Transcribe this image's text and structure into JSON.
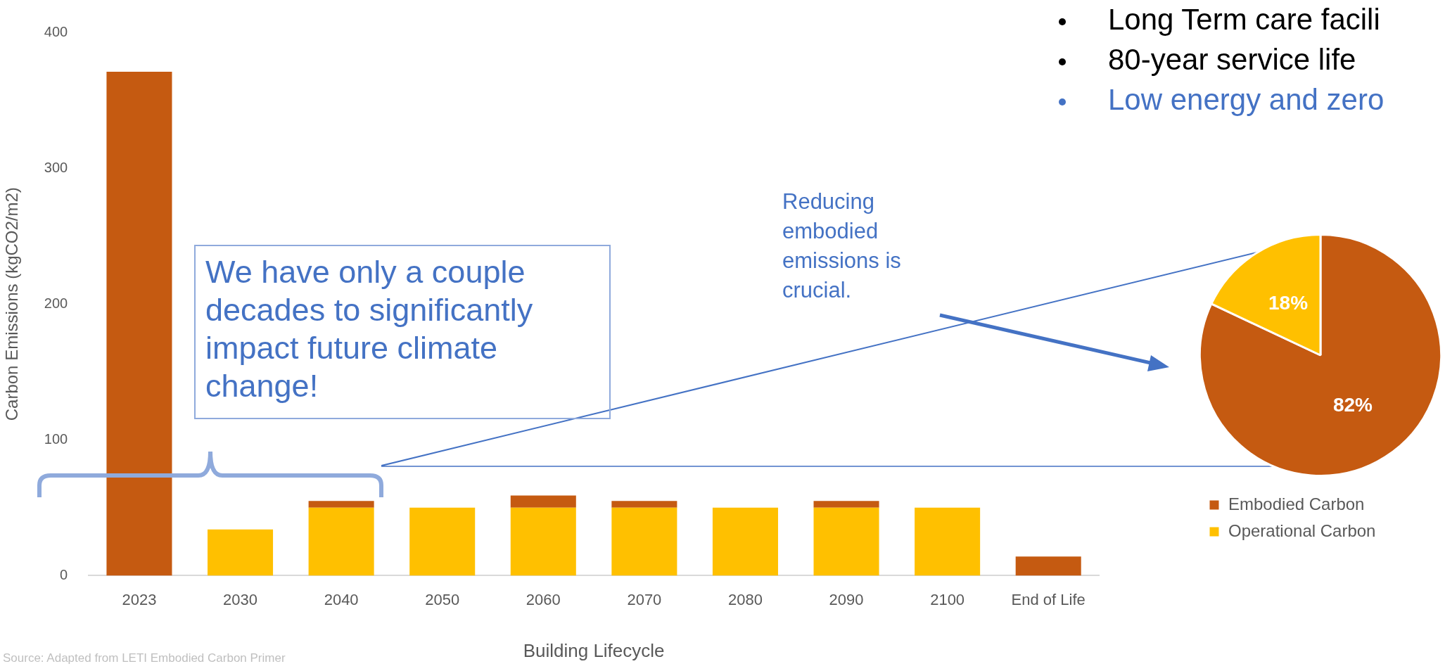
{
  "chart_data": [
    {
      "type": "bar",
      "categories": [
        "2023",
        "2030",
        "2040",
        "2050",
        "2060",
        "2070",
        "2080",
        "2090",
        "2100",
        "End of Life"
      ],
      "series": [
        {
          "color": "#ffc000",
          "values": [
            null,
            34,
            50,
            50,
            50,
            50,
            50,
            50,
            50,
            null
          ]
        },
        {
          "color": "#c55a11",
          "values": [
            371,
            null,
            5,
            null,
            9,
            5,
            null,
            5,
            null,
            14
          ]
        }
      ],
      "stacked": true,
      "ylim": [
        0,
        400
      ],
      "yticks": [
        0,
        100,
        200,
        300,
        400
      ],
      "grid": false,
      "ylabel": "Carbon Emissions (kgCO2/m2)",
      "xlabel": "Building Lifecycle",
      "annotations": [
        "Source: Adapted from LETI Embodied Carbon Primer",
        "We have only a couple decades to significantly impact future climate change!",
        "Reducing embodied emissions is crucial.",
        "Long Term care facili",
        "80-year service life",
        "Low energy and zero"
      ]
    },
    {
      "type": "pie",
      "categories": [
        "Embodied Carbon",
        "Operational Carbon"
      ],
      "values": [
        82,
        18
      ],
      "colors": [
        "#c55a11",
        "#ffc000"
      ],
      "value_labels": [
        "82%",
        "18%"
      ],
      "legend": "bottom"
    }
  ]
}
